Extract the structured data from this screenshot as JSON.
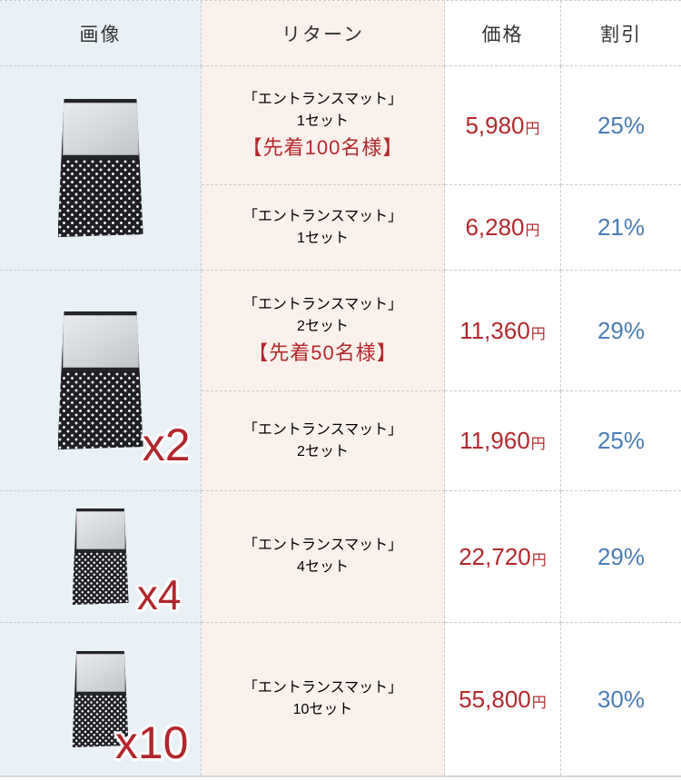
{
  "columns": [
    "画像",
    "リターン",
    "価格",
    "割引"
  ],
  "yen_suffix": "円",
  "images": [
    {
      "name": "entrance-mat",
      "label": ""
    },
    {
      "name": "entrance-mat",
      "label": "x2"
    },
    {
      "name": "entrance-mat",
      "label": "x4"
    },
    {
      "name": "entrance-mat",
      "label": "x10"
    }
  ],
  "rows": [
    {
      "title": "「エントランスマット」",
      "quantity": "1セット",
      "note": "【先着100名様】",
      "price": "5,980",
      "discount": "25%"
    },
    {
      "title": "「エントランスマット」",
      "quantity": "1セット",
      "note": "",
      "price": "6,280",
      "discount": "21%"
    },
    {
      "title": "「エントランスマット」",
      "quantity": "2セット",
      "note": "【先着50名様】",
      "price": "11,360",
      "discount": "29%"
    },
    {
      "title": "「エントランスマット」",
      "quantity": "2セット",
      "note": "",
      "price": "11,960",
      "discount": "25%"
    },
    {
      "title": "「エントランスマット」",
      "quantity": "4セット",
      "note": "",
      "price": "22,720",
      "discount": "29%"
    },
    {
      "title": "「エントランスマット」",
      "quantity": "10セット",
      "note": "",
      "price": "55,800",
      "discount": "30%"
    }
  ],
  "colors": {
    "image_column_bg": "#e9f1f7",
    "return_column_bg": "#faf1ec",
    "price_red": "#b3282d",
    "note_red": "#b3282d",
    "discount_blue": "#4a7db5",
    "quantity_label_red": "#b2262b",
    "border_gray": "#cccccc"
  }
}
